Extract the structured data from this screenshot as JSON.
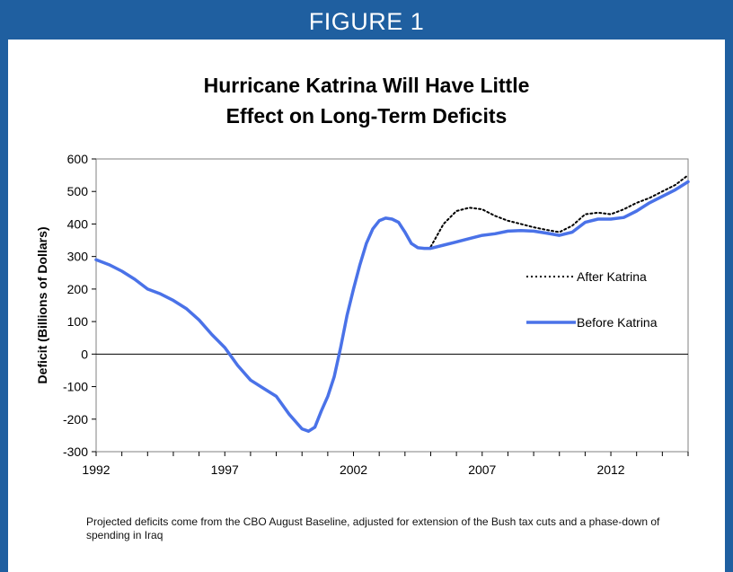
{
  "figure_label": "FIGURE 1",
  "title_line1": "Hurricane Katrina Will Have Little",
  "title_line2": "Effect on Long-Term Deficits",
  "footnote": "Projected deficits come from the CBO August Baseline, adjusted for extension of the Bush tax cuts and a phase-down of spending in Iraq",
  "colors": {
    "banner": "#1f5fa0",
    "before": "#4a72e8",
    "after": "#000000"
  },
  "chart_data": {
    "type": "line",
    "title": "Hurricane Katrina Will Have Little Effect on Long-Term Deficits",
    "xlabel": "",
    "ylabel": "Deficit (Billions of Dollars)",
    "ylim": [
      -300,
      600
    ],
    "xlim": [
      1992,
      2015
    ],
    "yticks": [
      -300,
      -200,
      -100,
      0,
      100,
      200,
      300,
      400,
      500,
      600
    ],
    "xticks": [
      1992,
      1997,
      2002,
      2007,
      2012
    ],
    "legend_position": "right",
    "series": [
      {
        "name": "After Katrina",
        "style": "dotted",
        "x": [
          2005.0,
          2005.5,
          2006.0,
          2006.5,
          2007.0,
          2007.5,
          2008.0,
          2008.5,
          2009.0,
          2009.5,
          2010.0,
          2010.5,
          2011.0,
          2011.5,
          2012.0,
          2012.5,
          2013.0,
          2013.5,
          2014.0,
          2014.5,
          2015.0
        ],
        "y": [
          330,
          400,
          440,
          450,
          445,
          425,
          410,
          400,
          390,
          382,
          375,
          395,
          430,
          435,
          430,
          445,
          465,
          480,
          500,
          520,
          550
        ]
      },
      {
        "name": "Before Katrina",
        "style": "solid",
        "x": [
          1992.0,
          1992.5,
          1993.0,
          1993.5,
          1994.0,
          1994.5,
          1995.0,
          1995.5,
          1996.0,
          1996.5,
          1997.0,
          1997.5,
          1998.0,
          1998.5,
          1999.0,
          1999.5,
          2000.0,
          2000.25,
          2000.5,
          2000.75,
          2001.0,
          2001.25,
          2001.5,
          2001.75,
          2002.0,
          2002.25,
          2002.5,
          2002.75,
          2003.0,
          2003.25,
          2003.5,
          2003.75,
          2004.0,
          2004.25,
          2004.5,
          2004.75,
          2005.0,
          2005.5,
          2006.0,
          2006.5,
          2007.0,
          2007.5,
          2008.0,
          2008.5,
          2009.0,
          2009.5,
          2010.0,
          2010.5,
          2011.0,
          2011.5,
          2012.0,
          2012.5,
          2013.0,
          2013.5,
          2014.0,
          2014.5,
          2015.0
        ],
        "y": [
          290,
          275,
          255,
          230,
          200,
          185,
          165,
          140,
          105,
          60,
          20,
          -35,
          -80,
          -105,
          -130,
          -185,
          -230,
          -237,
          -225,
          -175,
          -130,
          -70,
          20,
          120,
          200,
          275,
          340,
          385,
          410,
          418,
          415,
          405,
          375,
          340,
          327,
          325,
          325,
          335,
          345,
          355,
          365,
          370,
          378,
          380,
          378,
          372,
          365,
          375,
          405,
          415,
          415,
          420,
          440,
          465,
          485,
          505,
          530
        ]
      }
    ]
  }
}
